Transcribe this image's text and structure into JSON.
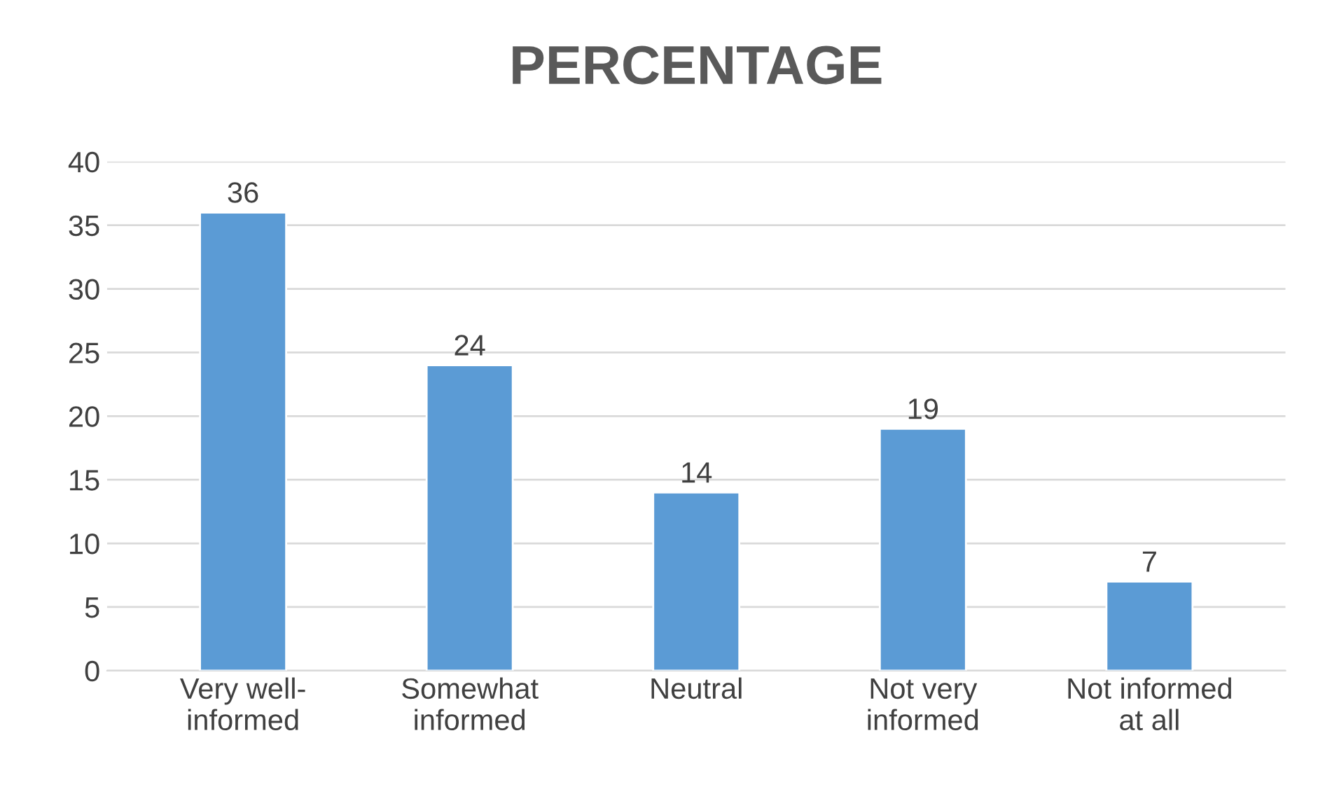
{
  "chart_data": {
    "type": "bar",
    "title": "PERCENTAGE",
    "categories": [
      "Very well-\ninformed",
      "Somewhat\ninformed",
      "Neutral",
      "Not very\ninformed",
      "Not informed\nat all"
    ],
    "values": [
      36,
      24,
      14,
      19,
      7
    ],
    "color": "#5b9bd5",
    "ylim": [
      0,
      40
    ],
    "yticks": [
      0,
      5,
      10,
      15,
      20,
      25,
      30,
      35,
      40
    ],
    "grid": "y",
    "data_labels": true
  }
}
